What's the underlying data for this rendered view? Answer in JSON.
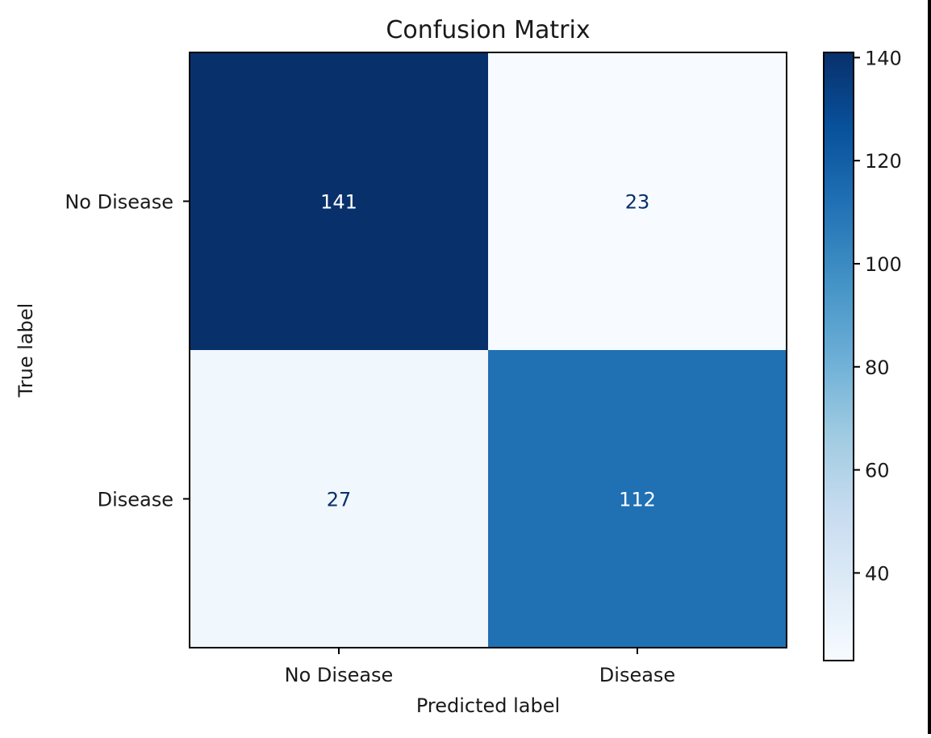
{
  "chart_data": {
    "type": "heatmap",
    "title": "Confusion Matrix",
    "xlabel": "Predicted label",
    "ylabel": "True label",
    "x_categories": [
      "No Disease",
      "Disease"
    ],
    "y_categories": [
      "No Disease",
      "Disease"
    ],
    "values": [
      [
        141,
        23
      ],
      [
        27,
        112
      ]
    ],
    "colormap": "Blues",
    "color_range": [
      23,
      141
    ],
    "colorbar_ticks": [
      40,
      60,
      80,
      100,
      120,
      140
    ],
    "colors": {
      "max": "#08306b",
      "min": "#f7fbff",
      "text_on_dark": "#ffffff",
      "text_on_light": "#08306b"
    }
  }
}
